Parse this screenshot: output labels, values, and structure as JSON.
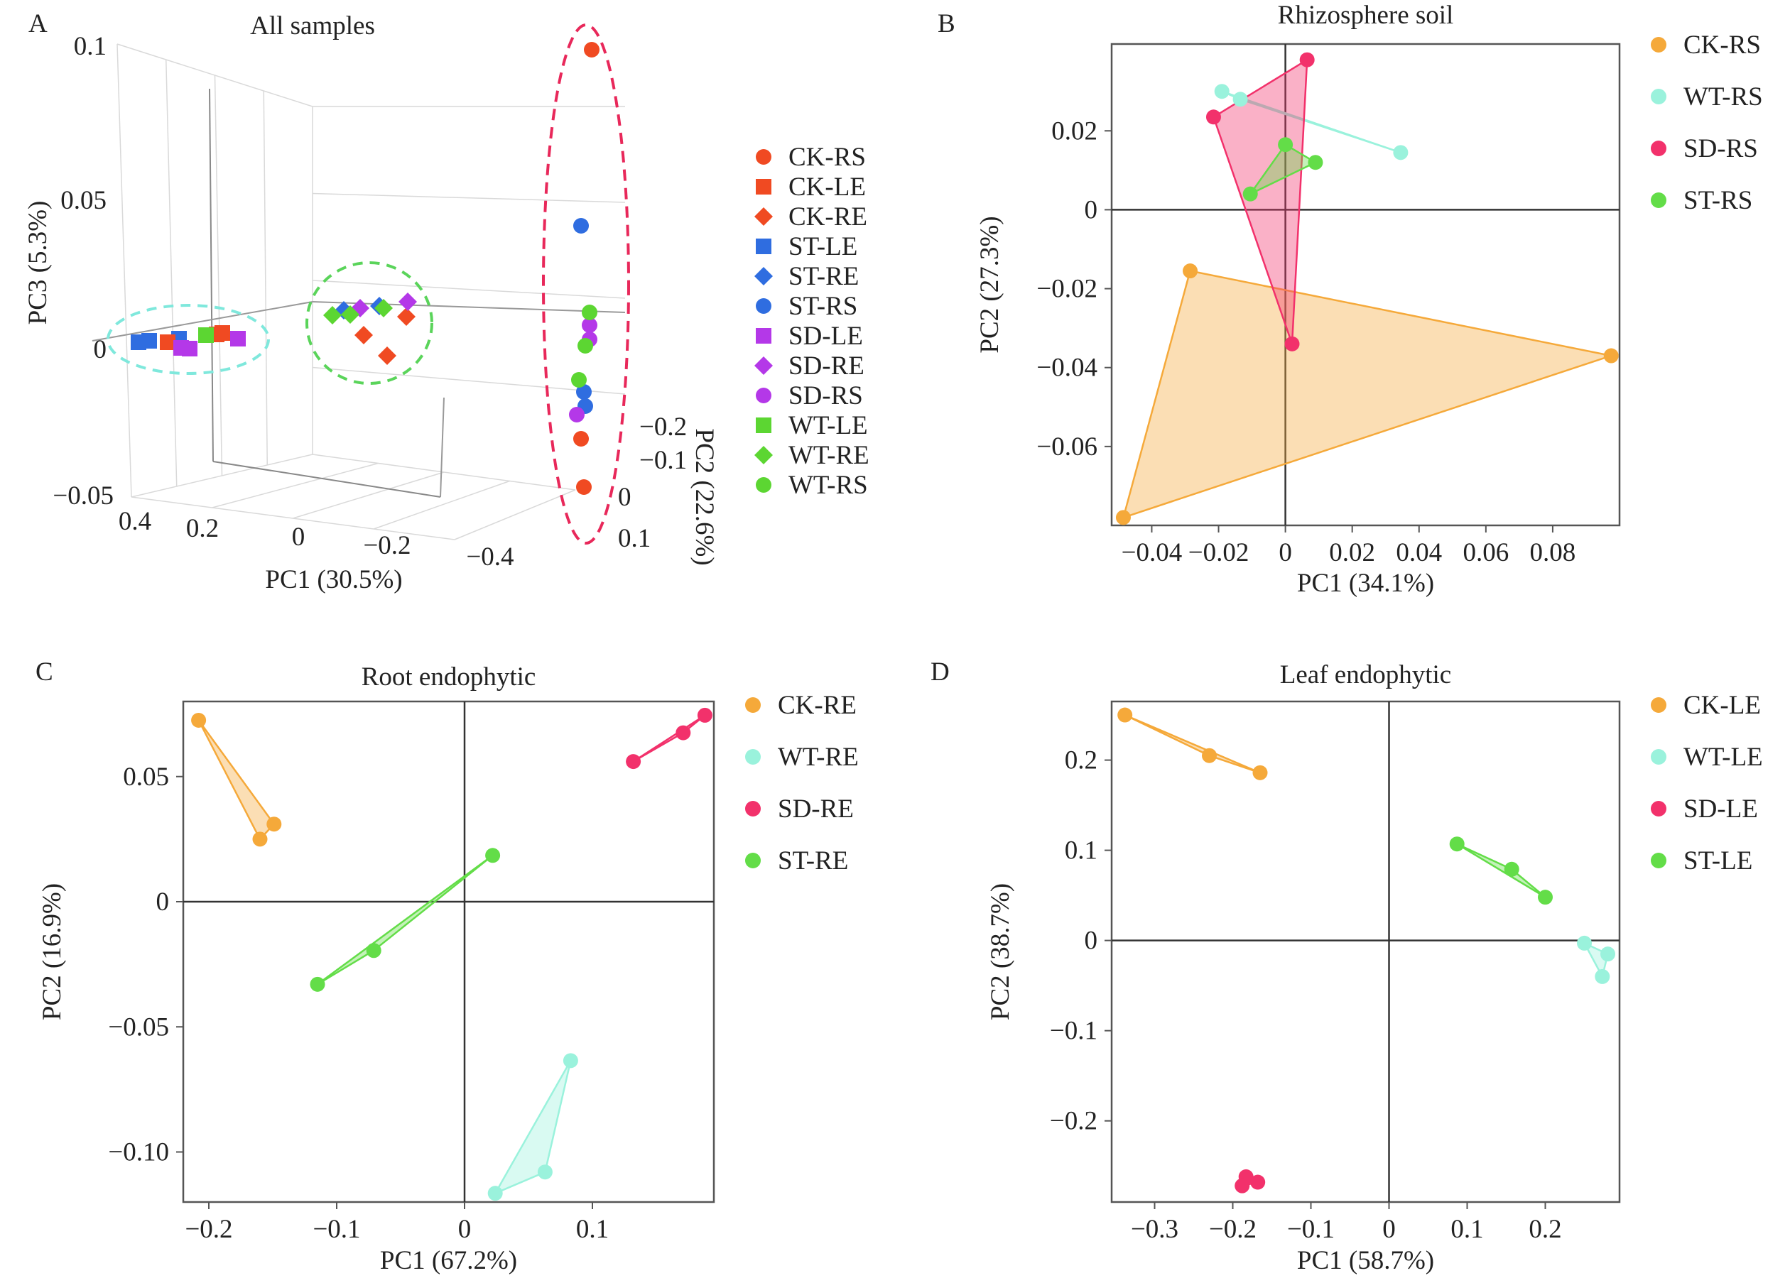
{
  "colors": {
    "CK": "#f5a93a",
    "WT": "#9af2dc",
    "SD": "#f2316b",
    "ST": "#63dd48",
    "3d": {
      "CK-RS": "#f04a22",
      "CK-LE": "#f04a22",
      "CK-RE": "#f04a22",
      "ST-LE": "#2f6de0",
      "ST-RE": "#2f6de0",
      "ST-RS": "#2f6de0",
      "SD-LE": "#b438e8",
      "SD-RE": "#b438e8",
      "SD-RS": "#b438e8",
      "WT-LE": "#5cd632",
      "WT-RE": "#5cd632",
      "WT-RS": "#5cd632"
    },
    "ellipse_right": "#e8285a",
    "ellipse_middle": "#5ad45a",
    "ellipse_left": "#7fe8dc"
  },
  "chart_data": [
    {
      "panel": "A",
      "type": "scatter",
      "projection": "3d",
      "title": "All samples",
      "xlabel": "PC1 (30.5%)",
      "ylabel": "PC2 (22.6%)",
      "zlabel": "PC3 (5.3%)",
      "x_ticks": [
        "0.4",
        "0.2",
        "0",
        "−0.2",
        "−0.4"
      ],
      "y_ticks": [
        "−0.2",
        "−0.1",
        "0",
        "0.1"
      ],
      "z_ticks": [
        "0.1",
        "0.05",
        "0",
        "−0.05"
      ],
      "legend": [
        {
          "label": "CK-RS",
          "shape": "circle"
        },
        {
          "label": "CK-LE",
          "shape": "square"
        },
        {
          "label": "CK-RE",
          "shape": "diamond"
        },
        {
          "label": "ST-LE",
          "shape": "square"
        },
        {
          "label": "ST-RE",
          "shape": "diamond"
        },
        {
          "label": "ST-RS",
          "shape": "circle"
        },
        {
          "label": "SD-LE",
          "shape": "square"
        },
        {
          "label": "SD-RE",
          "shape": "diamond"
        },
        {
          "label": "SD-RS",
          "shape": "circle"
        },
        {
          "label": "WT-LE",
          "shape": "square"
        },
        {
          "label": "WT-RE",
          "shape": "diamond"
        },
        {
          "label": "WT-RS",
          "shape": "circle"
        }
      ],
      "legend_position": "right",
      "groups_circled": [
        "leaf endophytic cluster",
        "root endophytic cluster",
        "rhizosphere cluster"
      ]
    },
    {
      "panel": "B",
      "type": "scatter",
      "title": "Rhizosphere soil",
      "xlabel": "PC1 (34.1%)",
      "ylabel": "PC2 (27.3%)",
      "xlim": [
        -0.052,
        0.1
      ],
      "ylim": [
        -0.08,
        0.042
      ],
      "xticks": [
        -0.04,
        -0.02,
        0,
        0.02,
        0.04,
        0.06,
        0.08
      ],
      "xtick_labels": [
        "−0.04",
        "−0.02",
        "0",
        "0.02",
        "0.04",
        "0.06",
        "0.08"
      ],
      "yticks": [
        0.02,
        0,
        -0.02,
        -0.04,
        -0.06
      ],
      "ytick_labels": [
        "0.02",
        "0",
        "−0.02",
        "−0.04",
        "−0.06"
      ],
      "legend_position": "right",
      "series": [
        {
          "name": "CK-RS",
          "group": "CK",
          "points": [
            [
              -0.0285,
              -0.0155
            ],
            [
              0.0975,
              -0.037
            ],
            [
              -0.0485,
              -0.078
            ]
          ]
        },
        {
          "name": "WT-RS",
          "group": "WT",
          "points": [
            [
              -0.019,
              0.03
            ],
            [
              -0.0135,
              0.028
            ],
            [
              0.0345,
              0.0145
            ]
          ]
        },
        {
          "name": "SD-RS",
          "group": "SD",
          "points": [
            [
              0.0065,
              0.038
            ],
            [
              -0.0215,
              0.0235
            ],
            [
              0.002,
              -0.034
            ]
          ]
        },
        {
          "name": "ST-RS",
          "group": "ST",
          "points": [
            [
              0.0,
              0.0165
            ],
            [
              0.009,
              0.012
            ],
            [
              -0.0105,
              0.004
            ]
          ]
        }
      ]
    },
    {
      "panel": "C",
      "type": "scatter",
      "title": "Root endophytic",
      "xlabel": "PC1 (67.2%)",
      "ylabel": "PC2 (16.9%)",
      "xlim": [
        -0.22,
        0.195
      ],
      "ylim": [
        -0.12,
        0.08
      ],
      "xticks": [
        -0.2,
        -0.1,
        0,
        0.1
      ],
      "xtick_labels": [
        "−0.2",
        "−0.1",
        "0",
        "0.1"
      ],
      "yticks": [
        0.05,
        0,
        -0.05,
        -0.1
      ],
      "ytick_labels": [
        "0.05",
        "0",
        "−0.05",
        "−0.10"
      ],
      "legend_position": "right",
      "series": [
        {
          "name": "CK-RE",
          "group": "CK",
          "points": [
            [
              -0.208,
              0.0725
            ],
            [
              -0.149,
              0.031
            ],
            [
              -0.16,
              0.025
            ]
          ]
        },
        {
          "name": "WT-RE",
          "group": "WT",
          "points": [
            [
              0.083,
              -0.0635
            ],
            [
              0.063,
              -0.108
            ],
            [
              0.024,
              -0.1165
            ]
          ]
        },
        {
          "name": "SD-RE",
          "group": "SD",
          "points": [
            [
              0.132,
              0.056
            ],
            [
              0.171,
              0.0675
            ],
            [
              0.188,
              0.0745
            ]
          ]
        },
        {
          "name": "ST-RE",
          "group": "ST",
          "points": [
            [
              0.022,
              0.0185
            ],
            [
              -0.071,
              -0.0195
            ],
            [
              -0.115,
              -0.033
            ]
          ]
        }
      ]
    },
    {
      "panel": "D",
      "type": "scatter",
      "title": "Leaf endophytic",
      "xlabel": "PC1 (58.7%)",
      "ylabel": "PC2 (38.7%)",
      "xlim": [
        -0.355,
        0.295
      ],
      "ylim": [
        -0.29,
        0.265
      ],
      "xticks": [
        -0.3,
        -0.2,
        -0.1,
        0,
        0.1,
        0.2
      ],
      "xtick_labels": [
        "−0.3",
        "−0.2",
        "−0.1",
        "0",
        "0.1",
        "0.2"
      ],
      "yticks": [
        0.2,
        0.1,
        0,
        -0.1,
        -0.2
      ],
      "ytick_labels": [
        "0.2",
        "0.1",
        "0",
        "−0.1",
        "−0.2"
      ],
      "legend_position": "right",
      "series": [
        {
          "name": "CK-LE",
          "group": "CK",
          "points": [
            [
              -0.338,
              0.25
            ],
            [
              -0.23,
              0.205
            ],
            [
              -0.165,
              0.186
            ]
          ]
        },
        {
          "name": "WT-LE",
          "group": "WT",
          "points": [
            [
              0.25,
              -0.003
            ],
            [
              0.28,
              -0.015
            ],
            [
              0.273,
              -0.04
            ]
          ]
        },
        {
          "name": "SD-LE",
          "group": "SD",
          "points": [
            [
              -0.183,
              -0.262
            ],
            [
              -0.168,
              -0.268
            ],
            [
              -0.188,
              -0.272
            ]
          ]
        },
        {
          "name": "ST-LE",
          "group": "ST",
          "points": [
            [
              0.087,
              0.107
            ],
            [
              0.157,
              0.079
            ],
            [
              0.2,
              0.048
            ]
          ]
        }
      ]
    }
  ],
  "panel_letters": [
    "A",
    "B",
    "C",
    "D"
  ]
}
